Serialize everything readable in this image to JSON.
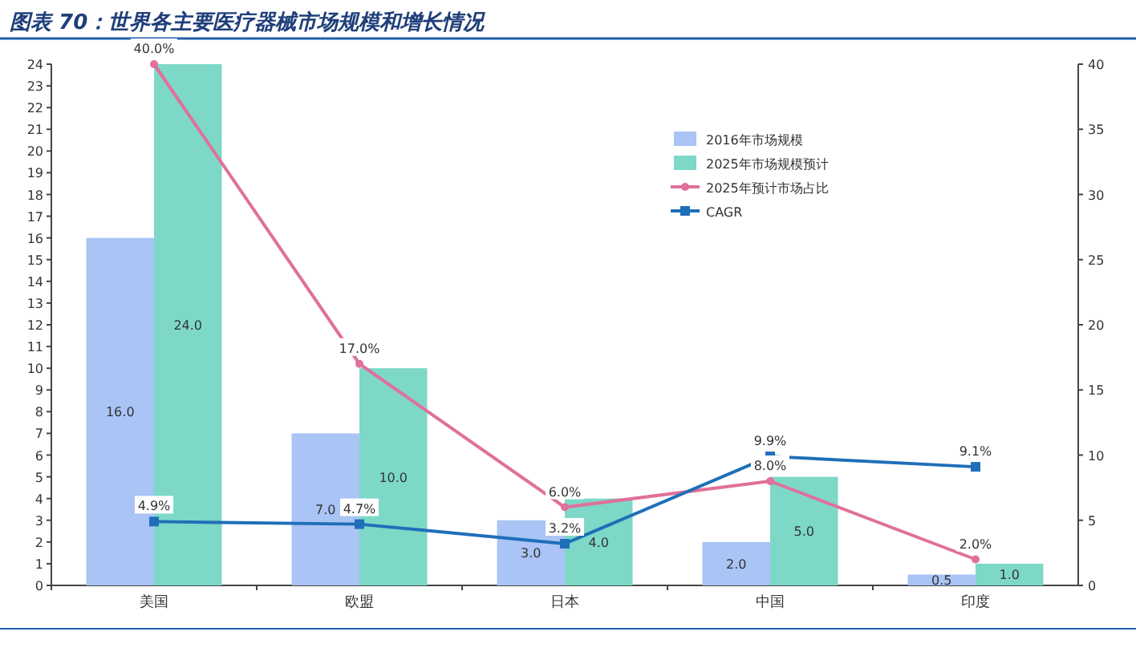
{
  "chart_data": {
    "type": "bar",
    "title": "图表 70：世界各主要医疗器械市场规模和增长情况",
    "categories": [
      "美国",
      "欧盟",
      "日本",
      "中国",
      "印度"
    ],
    "ylim": [
      0,
      24
    ],
    "yticks": [
      0,
      1,
      2,
      3,
      4,
      5,
      6,
      7,
      8,
      9,
      10,
      11,
      12,
      13,
      14,
      15,
      16,
      17,
      18,
      19,
      20,
      21,
      22,
      23,
      24
    ],
    "y2lim": [
      0,
      40
    ],
    "y2ticks": [
      0,
      5,
      10,
      15,
      20,
      25,
      30,
      35,
      40
    ],
    "legend": "top right",
    "grid": false,
    "series": [
      {
        "name": "2016年市场规模",
        "color": "#a9c4f5",
        "values": [
          16,
          7,
          3,
          2,
          0.5
        ],
        "value_labels": [
          "16.0",
          "7.0",
          "3.0",
          "2.0",
          "0.5"
        ]
      },
      {
        "name": "2025年市场规模预计",
        "color": "#7dd8c8",
        "values": [
          24,
          10,
          4,
          5,
          1
        ],
        "value_labels": [
          "24.0",
          "10.0",
          "4.0",
          "5.0",
          "1.0"
        ]
      },
      {
        "name": "2025年预计市场占比",
        "type": "line",
        "axis": "y2",
        "color": "#e0709a",
        "marker": "circle",
        "values": [
          40,
          17,
          6,
          8,
          2
        ],
        "value_labels": [
          "40.0%",
          "17.0%",
          "6.0%",
          "8.0%",
          "2.0%"
        ]
      },
      {
        "name": "CAGR",
        "type": "line",
        "axis": "y2",
        "color": "#1f6fb8",
        "marker": "square",
        "values": [
          4.9,
          4.7,
          3.2,
          9.9,
          9.1
        ],
        "value_labels": [
          "4.9%",
          "4.7%",
          "3.2%",
          "9.9%",
          "9.1%"
        ]
      }
    ]
  }
}
